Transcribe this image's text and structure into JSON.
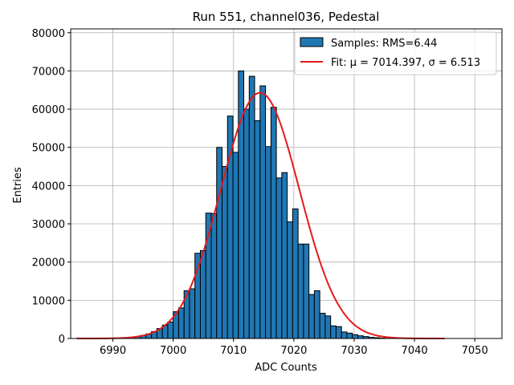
{
  "chart_data": {
    "type": "bar",
    "title": "Run 551, channel036, Pedestal",
    "xlabel": "ADC Counts",
    "ylabel": "Entries",
    "xlim": [
      6983,
      7054.5
    ],
    "ylim": [
      0,
      81000
    ],
    "xticks": [
      6990,
      7000,
      7010,
      7020,
      7030,
      7040,
      7050
    ],
    "xtick_labels": [
      "6990",
      "7000",
      "7010",
      "7020",
      "7030",
      "7040",
      "7050"
    ],
    "yticks": [
      0,
      10000,
      20000,
      30000,
      40000,
      50000,
      60000,
      70000,
      80000
    ],
    "ytick_labels": [
      "0",
      "10000",
      "20000",
      "30000",
      "40000",
      "50000",
      "60000",
      "70000",
      "80000"
    ],
    "grid": true,
    "legend_position": "top-right",
    "histogram": {
      "name": "Samples: RMS=6.44",
      "color": "#1f77b4",
      "edge_color": "#000000",
      "bin_width": 0.9,
      "bin_left_edges": [
        6991.0,
        6991.9,
        6992.8,
        6993.7,
        6994.6,
        6995.5,
        6996.4,
        6997.3,
        6998.2,
        6999.1,
        7000.0,
        7000.9,
        7001.8,
        7002.7,
        7003.6,
        7004.5,
        7005.4,
        7006.3,
        7007.2,
        7008.1,
        7009.0,
        7009.9,
        7010.8,
        7011.7,
        7012.6,
        7013.5,
        7014.4,
        7015.3,
        7016.2,
        7017.1,
        7018.0,
        7018.9,
        7019.8,
        7020.7,
        7021.6,
        7022.5,
        7023.4,
        7024.3,
        7025.2,
        7026.1,
        7027.0,
        7027.9,
        7028.8,
        7029.7,
        7030.6,
        7031.5,
        7032.4,
        7033.3,
        7034.2,
        7035.1,
        7036.0
      ],
      "counts": [
        100,
        200,
        300,
        500,
        800,
        1200,
        1800,
        2600,
        3500,
        4300,
        7000,
        8000,
        12500,
        13000,
        22300,
        23000,
        32800,
        32700,
        50000,
        45000,
        58200,
        48700,
        70000,
        60000,
        68600,
        57000,
        66100,
        50200,
        60500,
        42000,
        43400,
        30500,
        33900,
        24700,
        24700,
        11500,
        12500,
        6600,
        5900,
        3300,
        3100,
        1700,
        1400,
        1000,
        700,
        500,
        300,
        200,
        100,
        50,
        30
      ]
    },
    "fit": {
      "name": "Fit: μ = 7014.397, σ = 6.513",
      "color": "#e31a1c",
      "mu": 7014.397,
      "sigma": 6.513,
      "amplitude": 64300,
      "x_range": [
        6984,
        7045
      ]
    }
  }
}
